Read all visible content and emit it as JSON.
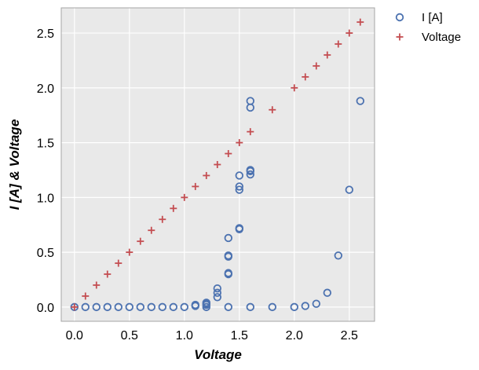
{
  "chart_data": {
    "type": "scatter",
    "title": "",
    "xlabel": "Voltage",
    "ylabel": "I [A] & Voltage",
    "xlim": [
      -0.12,
      2.73
    ],
    "ylim": [
      -0.13,
      2.73
    ],
    "xticks": [
      0.0,
      0.5,
      1.0,
      1.5,
      2.0,
      2.5
    ],
    "xtick_labels": [
      "0.0",
      "0.5",
      "1.0",
      "1.5",
      "2.0",
      "2.5"
    ],
    "yticks": [
      0.0,
      0.5,
      1.0,
      1.5,
      2.0,
      2.5
    ],
    "ytick_labels": [
      "0.0",
      "0.5",
      "1.0",
      "1.5",
      "2.0",
      "2.5"
    ],
    "grid": true,
    "legend_position": "outside-top-right",
    "series": [
      {
        "name": "I [A]",
        "marker": "open-circle",
        "color": "#4c72b0",
        "points": [
          [
            0.0,
            0.0
          ],
          [
            0.1,
            0.0
          ],
          [
            0.2,
            0.0
          ],
          [
            0.3,
            0.0
          ],
          [
            0.4,
            0.0
          ],
          [
            0.5,
            0.0
          ],
          [
            0.6,
            0.0
          ],
          [
            0.7,
            0.0
          ],
          [
            0.8,
            0.0
          ],
          [
            0.9,
            0.0
          ],
          [
            1.0,
            0.0
          ],
          [
            1.1,
            0.01
          ],
          [
            1.1,
            0.02
          ],
          [
            1.2,
            0.0
          ],
          [
            1.2,
            0.02
          ],
          [
            1.2,
            0.03
          ],
          [
            1.2,
            0.04
          ],
          [
            1.3,
            0.09
          ],
          [
            1.3,
            0.13
          ],
          [
            1.3,
            0.17
          ],
          [
            1.4,
            0.0
          ],
          [
            1.4,
            0.3
          ],
          [
            1.4,
            0.31
          ],
          [
            1.4,
            0.46
          ],
          [
            1.4,
            0.47
          ],
          [
            1.4,
            0.63
          ],
          [
            1.5,
            0.71
          ],
          [
            1.5,
            0.72
          ],
          [
            1.5,
            1.07
          ],
          [
            1.5,
            1.1
          ],
          [
            1.5,
            1.2
          ],
          [
            1.6,
            0.0
          ],
          [
            1.6,
            1.21
          ],
          [
            1.6,
            1.24
          ],
          [
            1.6,
            1.25
          ],
          [
            1.6,
            1.82
          ],
          [
            1.6,
            1.88
          ],
          [
            1.8,
            0.0
          ],
          [
            2.0,
            0.0
          ],
          [
            2.1,
            0.01
          ],
          [
            2.2,
            0.03
          ],
          [
            2.3,
            0.13
          ],
          [
            2.4,
            0.47
          ],
          [
            2.5,
            1.07
          ],
          [
            2.6,
            1.88
          ]
        ]
      },
      {
        "name": "Voltage",
        "marker": "plus",
        "color": "#c44e52",
        "points": [
          [
            0.0,
            0.0
          ],
          [
            0.1,
            0.1
          ],
          [
            0.2,
            0.2
          ],
          [
            0.3,
            0.3
          ],
          [
            0.4,
            0.4
          ],
          [
            0.5,
            0.5
          ],
          [
            0.6,
            0.6
          ],
          [
            0.7,
            0.7
          ],
          [
            0.8,
            0.8
          ],
          [
            0.9,
            0.9
          ],
          [
            1.0,
            1.0
          ],
          [
            1.1,
            1.1
          ],
          [
            1.2,
            1.2
          ],
          [
            1.3,
            1.3
          ],
          [
            1.4,
            1.4
          ],
          [
            1.5,
            1.5
          ],
          [
            1.6,
            1.6
          ],
          [
            1.8,
            1.8
          ],
          [
            2.0,
            2.0
          ],
          [
            2.1,
            2.1
          ],
          [
            2.2,
            2.2
          ],
          [
            2.3,
            2.3
          ],
          [
            2.4,
            2.4
          ],
          [
            2.5,
            2.5
          ],
          [
            2.6,
            2.6
          ]
        ]
      }
    ],
    "colors": {
      "background": "#e9e9e9",
      "grid": "#ffffff",
      "frame": "#a5a5a5"
    }
  }
}
